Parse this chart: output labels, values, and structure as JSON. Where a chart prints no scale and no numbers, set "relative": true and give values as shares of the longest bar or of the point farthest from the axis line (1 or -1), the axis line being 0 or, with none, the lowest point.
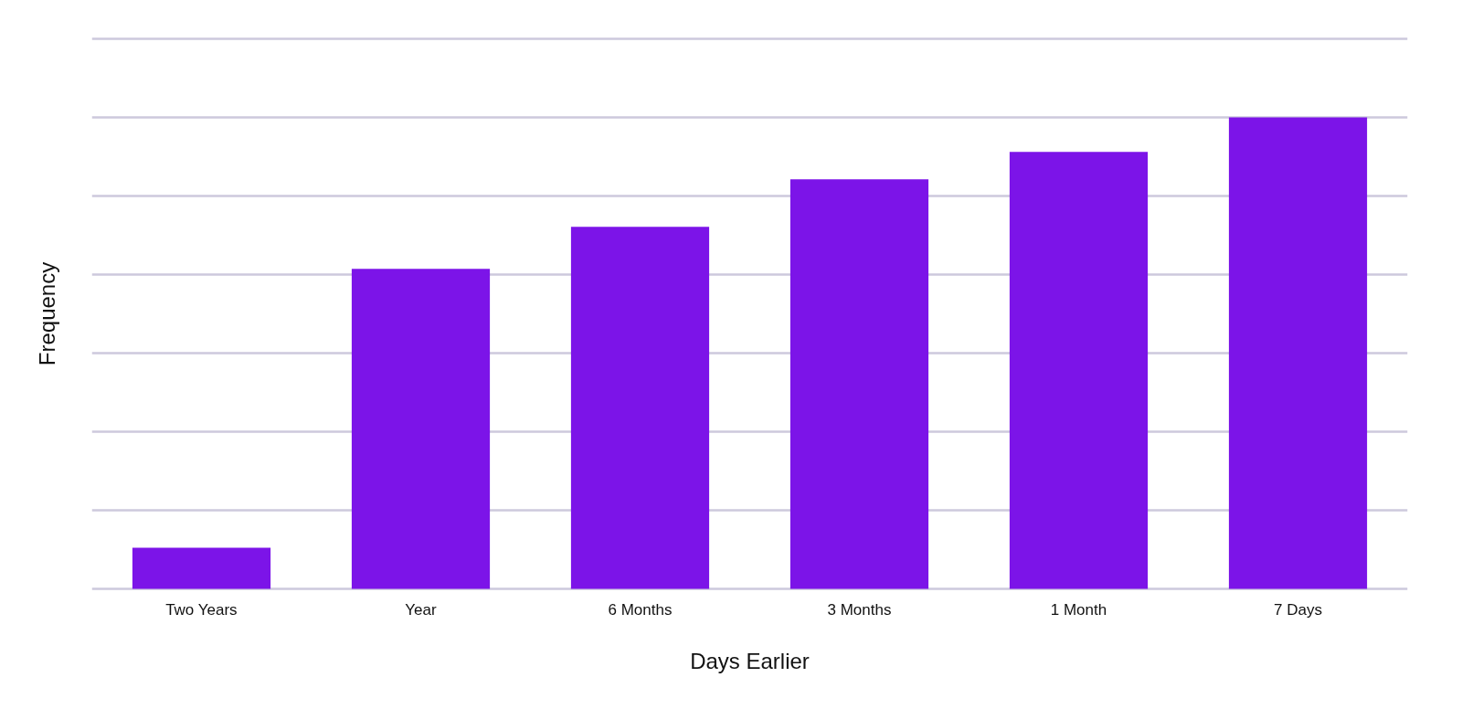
{
  "chart_data": {
    "type": "bar",
    "relative": true,
    "xlabel": "Days Earlier",
    "ylabel": "Frequency",
    "categories": [
      "Two Years",
      "Year",
      "6 Months",
      "3 Months",
      "1 Month",
      "7 Days"
    ],
    "values": [
      0.087,
      0.679,
      0.768,
      0.869,
      0.927,
      1
    ],
    "color": "#7c14e8",
    "grid": "y"
  }
}
